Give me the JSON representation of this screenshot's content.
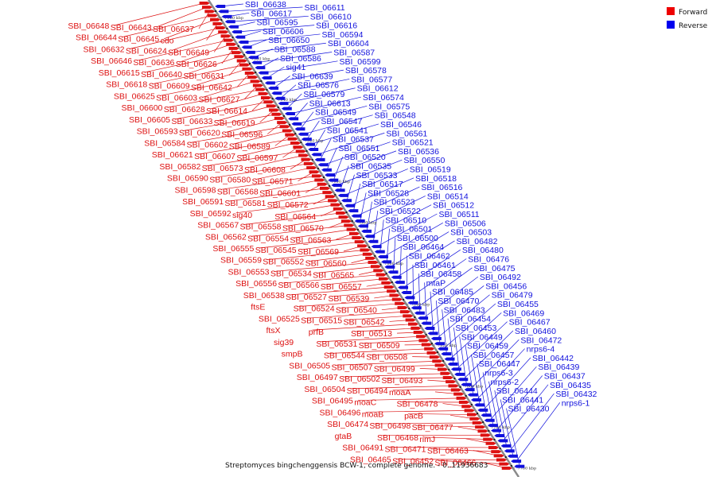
{
  "caption": "Streptomyces bingchenggensis BCW-1, complete genome. - 0..11936683",
  "legend": [
    {
      "label": "Forward",
      "color": "#ee0000"
    },
    {
      "label": "Reverse",
      "color": "#0000ee"
    }
  ],
  "colors": {
    "forward": "#dd1111",
    "reverse": "#1111dd",
    "axis": "#888888"
  },
  "ticks": [
    "7980 kbp",
    "7960 kbp",
    "7940 kbp",
    "7920 kbp",
    "7900 kbp",
    "7880 kbp",
    "7860 kbp",
    "7840 kbp",
    "7820 kbp",
    "7800 kbp",
    "7780 kbp",
    "7760 kbp"
  ],
  "forward_genes": [
    "SBI_06648",
    "SBI_06643",
    "SBI_06637",
    "SBI_06644",
    "SBI_06645",
    "cdo",
    "SBI_06632",
    "SBI_06624",
    "SBI_06649",
    "SBI_06646",
    "SBI_06636",
    "SBI_06626",
    "SBI_06615",
    "SBI_06640",
    "SBI_06631",
    "SBI_06618",
    "SBI_06609",
    "SBI_06642",
    "SBI_06625",
    "SBI_06603",
    "SBI_06627",
    "SBI_06600",
    "SBI_06628",
    "SBI_06614",
    "SBI_06605",
    "SBI_06633",
    "SBI_06619",
    "SBI_06593",
    "SBI_06620",
    "SBI_06596",
    "SBI_06584",
    "SBI_06602",
    "SBI_06589",
    "SBI_06621",
    "SBI_06607",
    "SBI_06597",
    "SBI_06582",
    "SBI_06573",
    "SBI_06608",
    "SBI_06590",
    "SBI_06580",
    "SBI_06571",
    "SBI_06598",
    "SBI_06568",
    "SBI_06601",
    "SBI_06591",
    "SBI_06581",
    "SBI_06572",
    "SBI_06592",
    "sig40",
    "SBI_06564",
    "SBI_06567",
    "SBI_06558",
    "SBI_06570",
    "SBI_06562",
    "SBI_06554",
    "SBI_06563",
    "SBI_06555",
    "SBI_06545",
    "SBI_06569",
    "SBI_06559",
    "SBI_06552",
    "SBI_06560",
    "SBI_06553",
    "SBI_06534",
    "SBI_06565",
    "SBI_06556",
    "SBI_06566",
    "SBI_06557",
    "SBI_06538",
    "SBI_06527",
    "SBI_06539",
    "ftsE",
    "SBI_06524",
    "SBI_06540",
    "SBI_06525",
    "SBI_06515",
    "SBI_06542",
    "ftsX",
    "prfB",
    "SBI_06513",
    "sig39",
    "SBI_06531",
    "SBI_06509",
    "smpB",
    "SBI_06544",
    "SBI_06508",
    "SBI_06505",
    "SBI_06507",
    "SBI_06499",
    "SBI_06497",
    "SBI_06502",
    "SBI_06493",
    "SBI_06504",
    "SBI_06494",
    "moaA",
    "SBI_06495",
    "moaC",
    "SBI_06478",
    "SBI_06496",
    "moaB",
    "pacB",
    "SBI_06474",
    "SBI_06498",
    "SBI_06477",
    "gtaB",
    "SBI_06468",
    "rimJ",
    "SBI_06491",
    "SBI_06471",
    "SBI_06463",
    "SBI_06465",
    "SBI_06452",
    "SBI_06466"
  ],
  "reverse_genes": [
    "SBI_06638",
    "SBI_06611",
    "SBI_06617",
    "SBI_06610",
    "SBI_06595",
    "SBI_06616",
    "SBI_06606",
    "SBI_06594",
    "SBI_06650",
    "SBI_06604",
    "SBI_06588",
    "SBI_06587",
    "SBI_06586",
    "SBI_06599",
    "sig41",
    "SBI_06578",
    "SBI_06639",
    "SBI_06577",
    "SBI_06576",
    "SBI_06612",
    "SBI_06579",
    "SBI_06574",
    "SBI_06613",
    "SBI_06575",
    "SBI_06549",
    "SBI_06548",
    "SBI_06547",
    "SBI_06546",
    "SBI_06541",
    "SBI_06561",
    "SBI_06537",
    "SBI_06521",
    "SBI_06551",
    "SBI_06536",
    "SBI_06520",
    "SBI_06550",
    "SBI_06535",
    "SBI_06519",
    "SBI_06533",
    "SBI_06518",
    "SBI_06517",
    "SBI_06516",
    "SBI_06528",
    "SBI_06514",
    "SBI_06523",
    "SBI_06512",
    "SBI_06522",
    "SBI_06511",
    "SBI_06510",
    "SBI_06506",
    "SBI_06501",
    "SBI_06503",
    "SBI_06500",
    "SBI_06482",
    "SBI_06464",
    "SBI_06480",
    "SBI_06462",
    "SBI_06476",
    "SBI_06461",
    "SBI_06475",
    "SBI_06458",
    "SBI_06492",
    "mtaP",
    "SBI_06456",
    "SBI_06485",
    "SBI_06479",
    "SBI_06470",
    "SBI_06455",
    "SBI_06483",
    "SBI_06469",
    "SBI_06454",
    "SBI_06467",
    "SBI_06453",
    "SBI_06460",
    "SBI_06449",
    "SBI_06472",
    "SBI_06459",
    "nrps6-4",
    "SBI_06457",
    "SBI_06442",
    "SBI_06447",
    "SBI_06439",
    "nrps6-3",
    "SBI_06437",
    "nrps6-2",
    "SBI_06435",
    "SBI_06444",
    "SBI_06432",
    "SBI_06441",
    "nrps6-1",
    "SBI_06430"
  ]
}
